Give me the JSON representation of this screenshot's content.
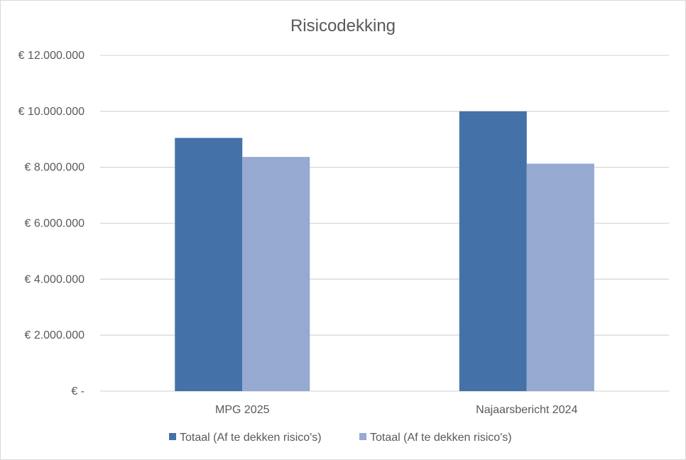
{
  "chart_data": {
    "type": "bar",
    "title": "Risicodekking",
    "xlabel": "",
    "ylabel": "",
    "categories": [
      "MPG 2025",
      "Najaarsbericht 2024"
    ],
    "series": [
      {
        "name": "Totaal (Af te dekken risico's)",
        "color": "#4472a8",
        "values": [
          9050000,
          10000000
        ]
      },
      {
        "name": "Totaal (Af te dekken risico's)",
        "color": "#95a9d1",
        "values": [
          8370000,
          8130000
        ]
      }
    ],
    "ylim": [
      0,
      12000000
    ],
    "yticks": [
      {
        "value": 0,
        "label": "€ -"
      },
      {
        "value": 2000000,
        "label": "€ 2.000.000"
      },
      {
        "value": 4000000,
        "label": "€ 4.000.000"
      },
      {
        "value": 6000000,
        "label": "€ 6.000.000"
      },
      {
        "value": 8000000,
        "label": "€ 8.000.000"
      },
      {
        "value": 10000000,
        "label": "€ 10.000.000"
      },
      {
        "value": 12000000,
        "label": "€ 12.000.000"
      }
    ],
    "grid": true,
    "gridline_color": "#d9d9d9",
    "legend_position": "bottom"
  }
}
